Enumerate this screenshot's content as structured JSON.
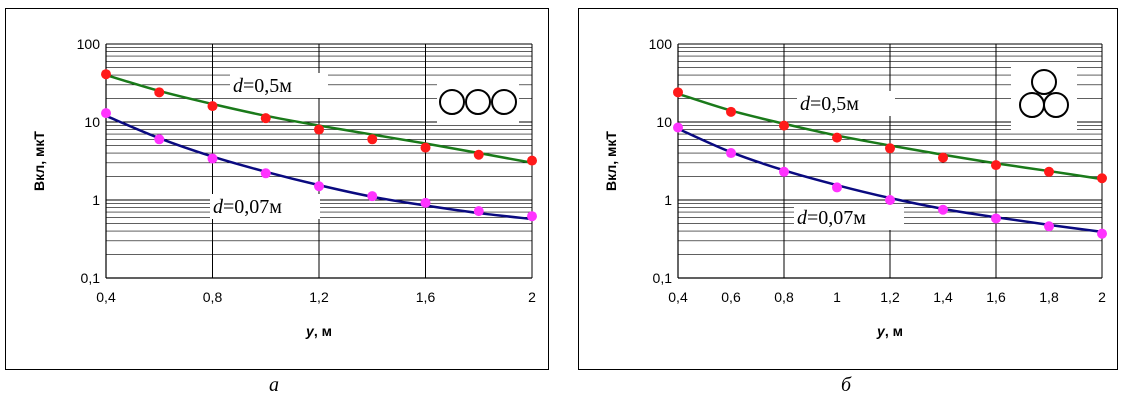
{
  "chart_data": [
    {
      "type": "line",
      "caption": "а",
      "ylabel": "Вкл, мкТ",
      "xlabel_var": "y",
      "xlabel_unit": ", м",
      "yscale": "log",
      "ylim": [
        0.1,
        100
      ],
      "xlim": [
        0.4,
        2
      ],
      "x_ticks": [
        "0,4",
        "0,8",
        "1,2",
        "1,6",
        "2"
      ],
      "y_ticks": [
        "0,1",
        "1",
        "10",
        "100"
      ],
      "grid": true,
      "icon": "three-cables-flat-icon",
      "series": [
        {
          "label_var": "d",
          "label_value": "=0,5м",
          "line_color": "#1a7a1a",
          "marker_color": "#ff1a1a",
          "points": [
            [
              0.4,
              41
            ],
            [
              0.6,
              24
            ],
            [
              0.8,
              16
            ],
            [
              1.0,
              11.2
            ],
            [
              1.2,
              8.0
            ],
            [
              1.4,
              6.0
            ],
            [
              1.6,
              4.7
            ],
            [
              1.8,
              3.8
            ],
            [
              2.0,
              3.2
            ]
          ],
          "curve": [
            [
              0.4,
              40
            ],
            [
              0.6,
              25
            ],
            [
              0.8,
              17
            ],
            [
              1.0,
              12
            ],
            [
              1.2,
              9.0
            ],
            [
              1.4,
              6.9
            ],
            [
              1.6,
              5.3
            ],
            [
              1.8,
              4.0
            ],
            [
              2.0,
              3.0
            ]
          ]
        },
        {
          "label_var": "d",
          "label_value": "=0,07м",
          "line_color": "#0a0a80",
          "marker_color": "#ff33ff",
          "points": [
            [
              0.4,
              13
            ],
            [
              0.6,
              6.0
            ],
            [
              0.8,
              3.4
            ],
            [
              1.0,
              2.2
            ],
            [
              1.2,
              1.5
            ],
            [
              1.4,
              1.12
            ],
            [
              1.6,
              0.92
            ],
            [
              1.8,
              0.72
            ],
            [
              2.0,
              0.62
            ]
          ],
          "curve": [
            [
              0.4,
              12
            ],
            [
              0.6,
              6.2
            ],
            [
              0.8,
              3.6
            ],
            [
              1.0,
              2.3
            ],
            [
              1.2,
              1.55
            ],
            [
              1.4,
              1.1
            ],
            [
              1.6,
              0.85
            ],
            [
              1.8,
              0.68
            ],
            [
              2.0,
              0.57
            ]
          ]
        }
      ]
    },
    {
      "type": "line",
      "caption": "б",
      "ylabel": "Вкл, мкТ",
      "xlabel_var": "y",
      "xlabel_unit": ", м",
      "yscale": "log",
      "ylim": [
        0.1,
        100
      ],
      "xlim": [
        0.4,
        2
      ],
      "x_ticks": [
        "0,4",
        "0,6",
        "0,8",
        "1",
        "1,2",
        "1,4",
        "1,6",
        "1,8",
        "2"
      ],
      "y_ticks": [
        "0,1",
        "1",
        "10",
        "100"
      ],
      "grid": true,
      "icon": "three-cables-trefoil-icon",
      "series": [
        {
          "label_var": "d",
          "label_value": "=0,5м",
          "line_color": "#1a7a1a",
          "marker_color": "#ff1a1a",
          "points": [
            [
              0.4,
              24
            ],
            [
              0.6,
              13.5
            ],
            [
              0.8,
              9.0
            ],
            [
              1.0,
              6.3
            ],
            [
              1.2,
              4.6
            ],
            [
              1.4,
              3.5
            ],
            [
              1.6,
              2.8
            ],
            [
              1.8,
              2.3
            ],
            [
              2.0,
              1.9
            ]
          ],
          "curve": [
            [
              0.4,
              23
            ],
            [
              0.6,
              14
            ],
            [
              0.8,
              9.5
            ],
            [
              1.0,
              6.7
            ],
            [
              1.2,
              5.0
            ],
            [
              1.4,
              3.8
            ],
            [
              1.6,
              2.95
            ],
            [
              1.8,
              2.35
            ],
            [
              2.0,
              1.85
            ]
          ]
        },
        {
          "label_var": "d",
          "label_value": "=0,07м",
          "line_color": "#0a0a80",
          "marker_color": "#ff33ff",
          "points": [
            [
              0.4,
              8.5
            ],
            [
              0.6,
              4.0
            ],
            [
              0.8,
              2.3
            ],
            [
              1.0,
              1.45
            ],
            [
              1.2,
              1.0
            ],
            [
              1.4,
              0.75
            ],
            [
              1.6,
              0.58
            ],
            [
              1.8,
              0.46
            ],
            [
              2.0,
              0.37
            ]
          ],
          "curve": [
            [
              0.4,
              8.2
            ],
            [
              0.6,
              4.1
            ],
            [
              0.8,
              2.4
            ],
            [
              1.0,
              1.55
            ],
            [
              1.2,
              1.06
            ],
            [
              1.4,
              0.77
            ],
            [
              1.6,
              0.6
            ],
            [
              1.8,
              0.48
            ],
            [
              2.0,
              0.39
            ]
          ]
        }
      ]
    }
  ]
}
